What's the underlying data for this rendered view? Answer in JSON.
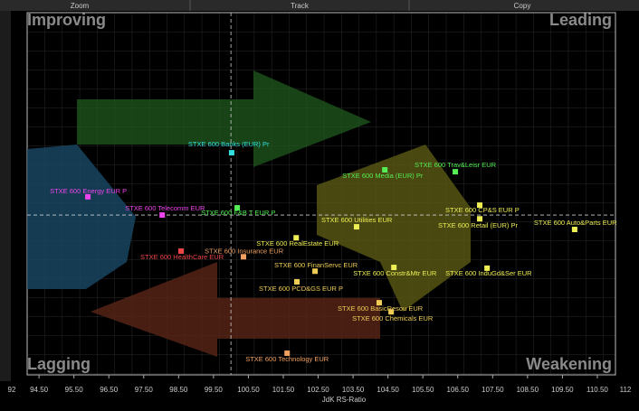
{
  "toolbar": [
    "Zoom",
    "Track",
    "Copy"
  ],
  "chart_data": {
    "type": "scatter",
    "quadrant_labels": {
      "top_left": "Improving",
      "top_right": "Leading",
      "bottom_left": "Lagging",
      "bottom_right": "Weakening"
    },
    "x_label": "JdK RS-Ratio",
    "xlim": [
      94.16,
      111.02
    ],
    "ylim": [
      95.79,
      105.33
    ],
    "xticks": [
      {
        "value": 94.5,
        "label": "94.50"
      },
      {
        "value": 95.5,
        "label": "95.50"
      },
      {
        "value": 96.5,
        "label": "96.50"
      },
      {
        "value": 97.5,
        "label": "97.50"
      },
      {
        "value": 98.5,
        "label": "98.50"
      },
      {
        "value": 99.5,
        "label": "99.50"
      },
      {
        "value": 100.5,
        "label": "100.50"
      },
      {
        "value": 101.5,
        "label": "101.50"
      },
      {
        "value": 102.5,
        "label": "102.50"
      },
      {
        "value": 103.5,
        "label": "103.50"
      },
      {
        "value": 104.5,
        "label": "104.50"
      },
      {
        "value": 105.5,
        "label": "105.50"
      },
      {
        "value": 106.5,
        "label": "106.50"
      },
      {
        "value": 107.5,
        "label": "107.50"
      },
      {
        "value": 108.5,
        "label": "108.50"
      },
      {
        "value": 109.5,
        "label": "109.50"
      },
      {
        "value": 110.5,
        "label": "110.50"
      }
    ],
    "x_edge_labels": [
      "92",
      "112"
    ],
    "reference_lines": {
      "x": 100,
      "y": 100
    },
    "points": [
      {
        "name": "STXE 600 Banks (EUR) Pr",
        "x": 100.02,
        "y": 101.64,
        "color": "#33e0e0"
      },
      {
        "name": "STXE 600 Trav&Leisr EUR",
        "x": 106.43,
        "y": 101.14,
        "color": "#55ee55"
      },
      {
        "name": "STXE 600 Media (EUR) Pr",
        "x": 104.41,
        "y": 101.19,
        "color": "#55ee55"
      },
      {
        "name": "STXE 600 Energy EUR P",
        "x": 95.9,
        "y": 100.48,
        "color": "#ee44ee"
      },
      {
        "name": "STXE 600 Telecomm EUR",
        "x": 98.03,
        "y": 100.0,
        "color": "#ee44ee"
      },
      {
        "name": "STXE 600 F&B T EUR P",
        "x": 100.18,
        "y": 100.19,
        "color": "#55ee55"
      },
      {
        "name": "STXE 600 CP&S EUR P",
        "x": 107.13,
        "y": 100.26,
        "color": "#eeee55"
      },
      {
        "name": "STXE 600 Utilities EUR",
        "x": 103.6,
        "y": 99.69,
        "color": "#eeee55"
      },
      {
        "name": "STXE 600 Retail (EUR) Pr",
        "x": 107.13,
        "y": 99.9,
        "color": "#eeee55"
      },
      {
        "name": "STXE 600 Auto&Parts EUR",
        "x": 109.85,
        "y": 99.62,
        "color": "#eeee55"
      },
      {
        "name": "STXE 600 RealEstate EUR",
        "x": 101.87,
        "y": 99.4,
        "color": "#eeee55"
      },
      {
        "name": "STXE 600 HealthCare EUR",
        "x": 98.57,
        "y": 99.05,
        "color": "#ee4444"
      },
      {
        "name": "STXE 600 Insurance EUR",
        "x": 100.36,
        "y": 98.9,
        "color": "#f0a060"
      },
      {
        "name": "STXE 600 FinanServc EUR",
        "x": 102.41,
        "y": 98.52,
        "color": "#eecc55"
      },
      {
        "name": "STXE 600 Constr&Mtr EUR",
        "x": 104.67,
        "y": 98.62,
        "color": "#eeee55"
      },
      {
        "name": "STXE 600 InduGd&Ser EUR",
        "x": 107.34,
        "y": 98.6,
        "color": "#eeee55"
      },
      {
        "name": "STXE 600 PCD&GS EUR P",
        "x": 101.89,
        "y": 98.24,
        "color": "#eecc55"
      },
      {
        "name": "STXE 600 BasicResou EUR",
        "x": 104.25,
        "y": 97.69,
        "color": "#eecc55"
      },
      {
        "name": "STXE 600 Chemicals EUR",
        "x": 104.59,
        "y": 97.45,
        "color": "#eecc55"
      },
      {
        "name": "STXE 600 Technology EUR",
        "x": 101.61,
        "y": 96.36,
        "color": "#f0a060"
      }
    ]
  }
}
